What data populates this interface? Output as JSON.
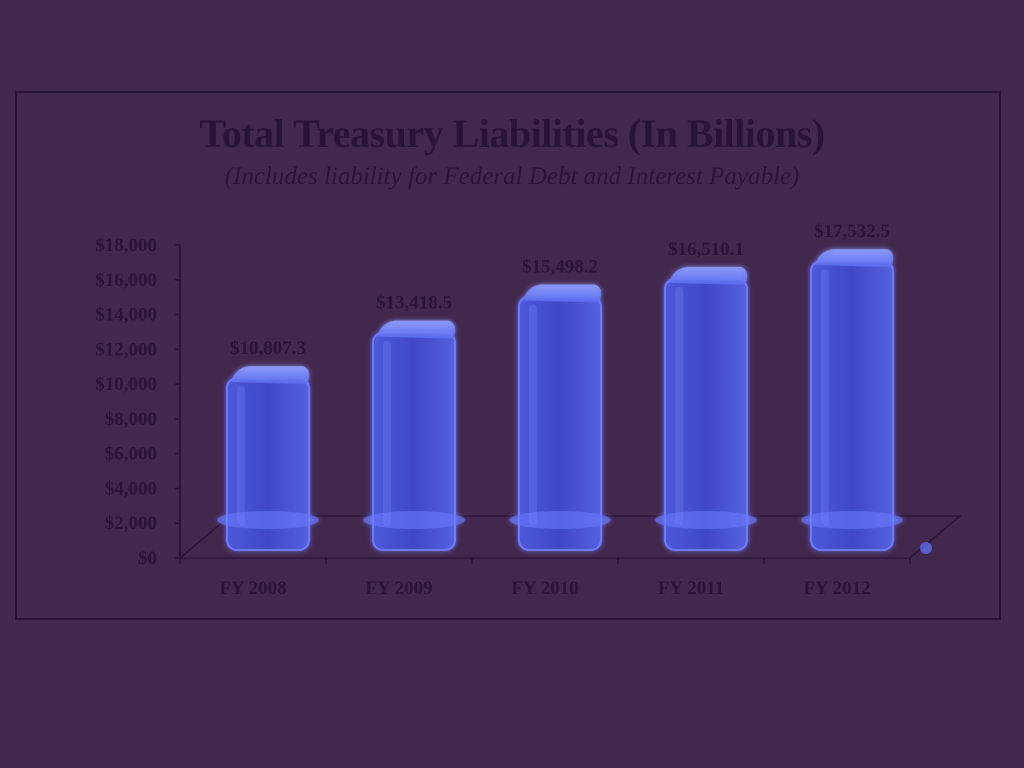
{
  "chart_data": {
    "type": "bar",
    "title": "Total Treasury Liabilities (In Billions)",
    "subtitle": "(Includes liability for Federal Debt and Interest Payable)",
    "xlabel": "",
    "ylabel": "",
    "categories": [
      "FY 2008",
      "FY 2009",
      "FY 2010",
      "FY 2011",
      "FY 2012"
    ],
    "values": [
      10807.3,
      13418.5,
      15498.2,
      16510.1,
      17532.5
    ],
    "data_labels": [
      "$10,807.3",
      "$13,418.5",
      "$15,498.2",
      "$16,510.1",
      "$17,532.5"
    ],
    "yticks": [
      "$0",
      "$2,000",
      "$4,000",
      "$6,000",
      "$8,000",
      "$10,000",
      "$12,000",
      "$14,000",
      "$16,000",
      "$18,000"
    ],
    "ylim": [
      0,
      18000
    ],
    "grid": false,
    "legend": "none",
    "style": "3d-column"
  },
  "colors": {
    "background": "#43284e",
    "text": "#2a1436",
    "bar": "#4a55d6",
    "bar_highlight": "#6b7cff",
    "bar_edge": "#7f8cff"
  }
}
